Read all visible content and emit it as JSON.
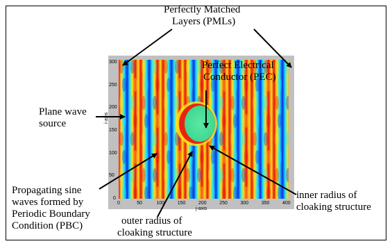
{
  "labels": {
    "pml": [
      "Perfectly Matched",
      "Layers (PMLs)"
    ],
    "pec": [
      "Perfect Electrical",
      "Conductor (PEC)"
    ],
    "source": [
      "Plane wave",
      "source"
    ],
    "sine": [
      "Propagating sine",
      "waves formed by",
      "Periodic Boundary",
      "Condition (PBC)"
    ],
    "outer": [
      "outer radius of",
      "cloaking structure"
    ],
    "inner": [
      "inner radius of",
      "cloaking structure"
    ]
  },
  "axes": {
    "xlabel": "j-axis",
    "ylabel": "i-axis",
    "xticks": [
      "0",
      "50",
      "100",
      "150",
      "200",
      "250",
      "300",
      "350",
      "400"
    ],
    "yticks": [
      "300",
      "250",
      "200",
      "150",
      "100",
      "50",
      "0"
    ]
  },
  "colors": {
    "red": "#e81010",
    "yellow": "#ffe21a",
    "cyan": "#20e4ff",
    "blue": "#0a2fe0",
    "pec": "#55e0a0"
  }
}
